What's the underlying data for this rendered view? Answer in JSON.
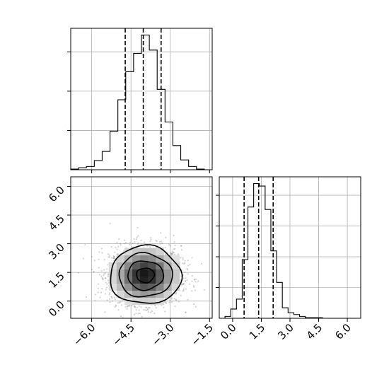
{
  "chart_data": [
    {
      "type": "histogram",
      "panel": "top-left",
      "variable": "x",
      "grid": true,
      "xlim": [
        -6.8,
        -1.4
      ],
      "bin_edges": [
        -6.8,
        -6.5,
        -6.2,
        -5.9,
        -5.6,
        -5.3,
        -5.0,
        -4.7,
        -4.4,
        -4.1,
        -3.8,
        -3.5,
        -3.2,
        -2.9,
        -2.6,
        -2.3,
        -2.0,
        -1.7
      ],
      "counts": [
        1,
        3,
        5,
        14,
        28,
        59,
        107,
        150,
        178,
        206,
        183,
        123,
        73,
        37,
        15,
        5,
        1
      ],
      "quantile_lines": [
        -4.72,
        -4.03,
        -3.35
      ],
      "y_tick_count": 3
    },
    {
      "type": "histogram",
      "panel": "bottom-right",
      "variable": "y",
      "grid": true,
      "xlim": [
        -0.7,
        6.7
      ],
      "x_ticks": [
        "0.0",
        "1.5",
        "3.0",
        "4.5",
        "6.0"
      ],
      "bin_edges": [
        -0.4,
        -0.1,
        0.2,
        0.5,
        0.8,
        1.1,
        1.4,
        1.7,
        2.0,
        2.3,
        2.6,
        2.9,
        3.2,
        3.5,
        3.8,
        4.1,
        4.4,
        4.7
      ],
      "counts": [
        3,
        15,
        31,
        95,
        180,
        218,
        214,
        176,
        109,
        58,
        17,
        9,
        6,
        3,
        1,
        1,
        1
      ],
      "quantile_lines": [
        0.6,
        1.36,
        2.12
      ],
      "y_tick_count": 4
    },
    {
      "type": "scatter",
      "panel": "bottom-left",
      "variables": [
        "x",
        "y"
      ],
      "grid": true,
      "xlim": [
        -6.8,
        -1.4
      ],
      "ylim": [
        -0.9,
        6.5
      ],
      "x_ticks": [
        "−6.0",
        "−4.5",
        "−3.0",
        "−1.5"
      ],
      "y_ticks": [
        "0.0",
        "1.5",
        "3.0",
        "4.5",
        "6.0"
      ],
      "center": [
        -3.95,
        1.35
      ],
      "std": [
        0.68,
        0.76
      ],
      "contour_levels_sigma": [
        0.5,
        1.0,
        1.5,
        2.0
      ],
      "point_color": "#808080",
      "contour_color": "#000000"
    }
  ]
}
